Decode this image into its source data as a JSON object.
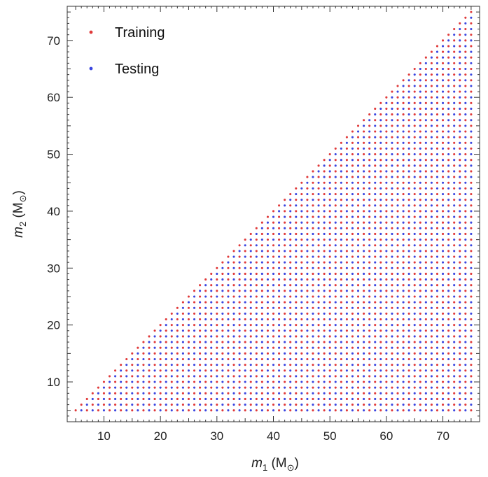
{
  "chart_data": {
    "type": "scatter",
    "xlabel": {
      "var": "m",
      "sub": "1",
      "unit": " (M",
      "unit_sub": "⊙",
      "close": ")"
    },
    "ylabel": {
      "var": "m",
      "sub": "2",
      "unit": " (M",
      "unit_sub": "⊙",
      "close": ")"
    },
    "xlim": [
      3.5,
      76.5
    ],
    "ylim": [
      3.0,
      76.0
    ],
    "xticks": [
      10,
      20,
      30,
      40,
      50,
      60,
      70
    ],
    "yticks": [
      10,
      20,
      30,
      40,
      50,
      60,
      70
    ],
    "grid": false,
    "legend_position": "top-left",
    "region": {
      "description_vertices": [
        [
          5,
          5
        ],
        [
          75,
          5
        ],
        [
          75,
          75
        ]
      ],
      "m1_min": 5,
      "m1_max": 75,
      "m2_min": 5,
      "m2_max": 75,
      "constraint": "m2 <= m1",
      "spacing": 1.0
    },
    "series": [
      {
        "name": "Training",
        "color": "#e03a3a",
        "pattern": "m1 + m2 even"
      },
      {
        "name": "Testing",
        "color": "#3a46e0",
        "pattern": "m1 + m2 odd"
      }
    ]
  },
  "legend": {
    "training_label": "Training",
    "testing_label": "Testing"
  }
}
